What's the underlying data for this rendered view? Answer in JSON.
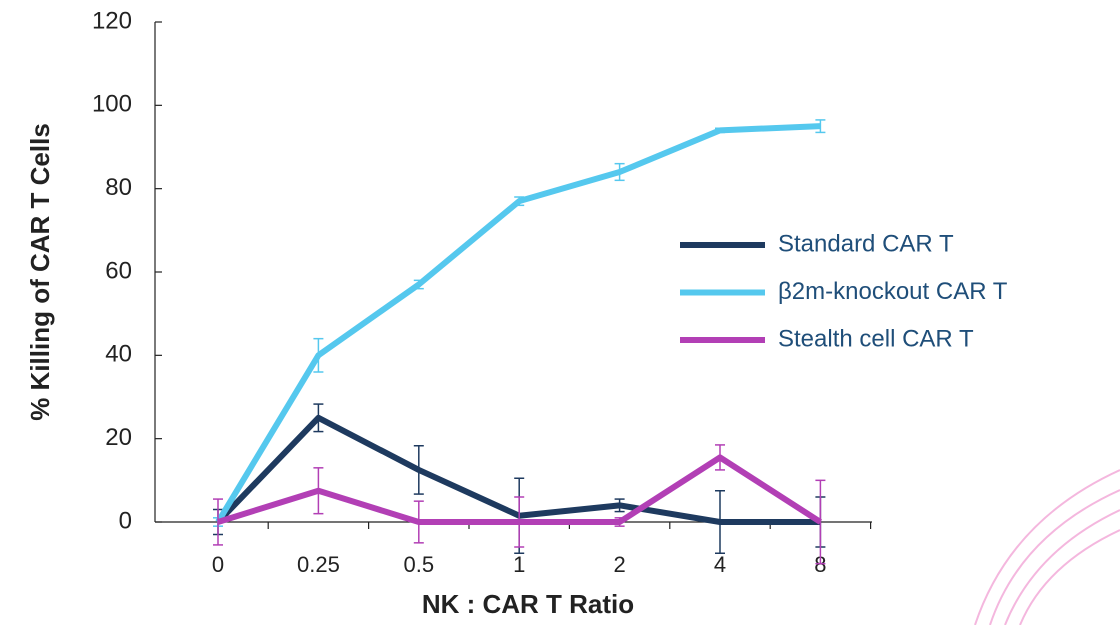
{
  "chart_data": {
    "type": "line",
    "x_label": "NK : CAR T Ratio",
    "y_label": "% Killing of CAR T Cells",
    "categories": [
      "0",
      "0.25",
      "0.5",
      "1",
      "2",
      "4",
      "8"
    ],
    "series": [
      {
        "name": "Standard CAR T",
        "color": "#1e3a5f",
        "values": [
          0,
          25,
          12.5,
          1.5,
          4,
          0,
          0
        ],
        "errors": [
          3,
          3.3,
          5.8,
          9,
          1.5,
          7.5,
          6
        ]
      },
      {
        "name": "β2m-knockout CAR T",
        "color": "#55c8ee",
        "values": [
          0,
          40,
          57,
          77,
          84,
          94,
          95
        ],
        "errors": [
          1,
          4,
          1,
          1,
          2,
          0.5,
          1.5
        ]
      },
      {
        "name": "Stealth cell CAR T",
        "color": "#b23fb5",
        "values": [
          0,
          7.5,
          0,
          0,
          0,
          15.5,
          0
        ],
        "errors": [
          5.5,
          5.5,
          5,
          6,
          1,
          3,
          10
        ]
      }
    ],
    "ylim": [
      0,
      120
    ],
    "yticks": [
      0,
      20,
      40,
      60,
      80,
      100,
      120
    ],
    "legend": "right"
  }
}
